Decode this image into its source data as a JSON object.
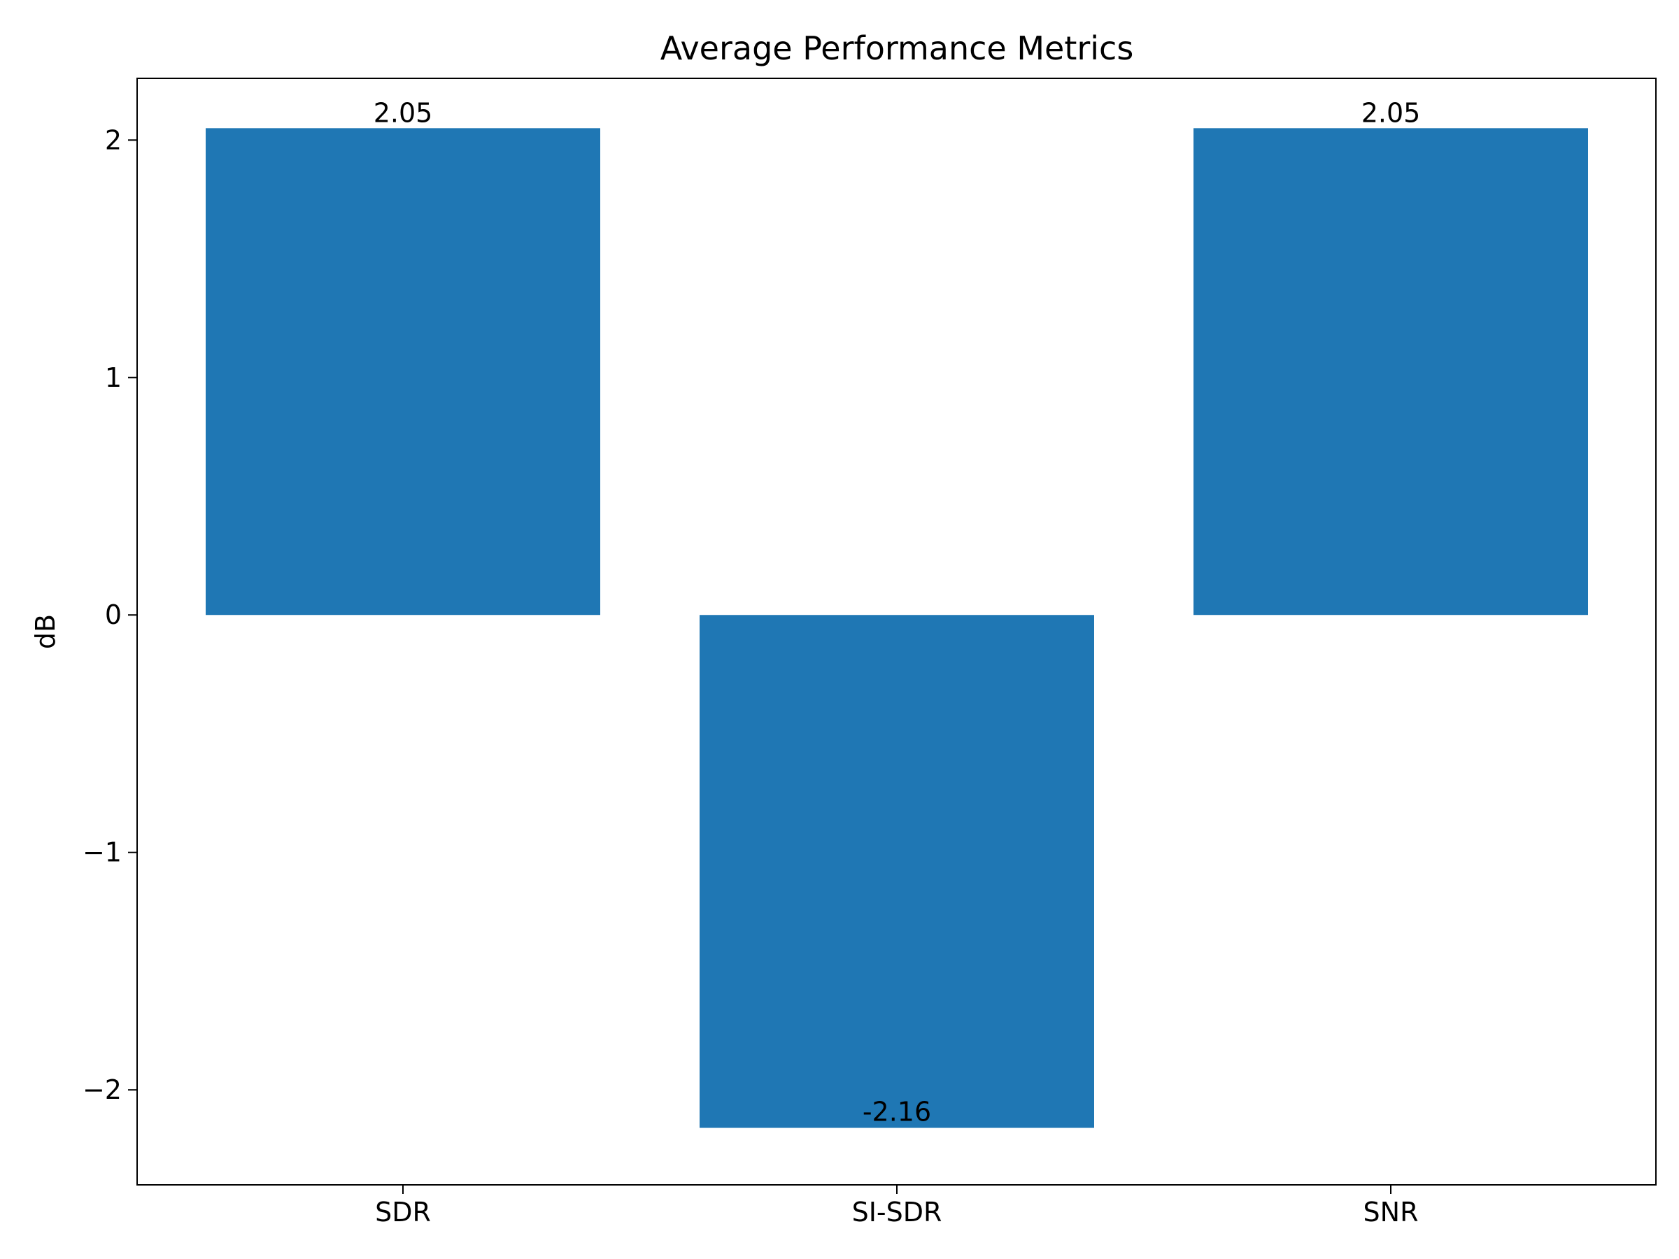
{
  "chart_data": {
    "type": "bar",
    "title": "Average Performance Metrics",
    "xlabel": "",
    "ylabel": "dB",
    "categories": [
      "SDR",
      "SI-SDR",
      "SNR"
    ],
    "values": [
      2.05,
      -2.16,
      2.05
    ],
    "data_labels": [
      "2.05",
      "-2.16",
      "2.05"
    ],
    "ylim": [
      -2.4,
      2.26
    ],
    "yticks": [
      2,
      1,
      0,
      -1,
      -2
    ],
    "ytick_labels": [
      "2",
      "1",
      "0",
      "−1",
      "−2"
    ],
    "grid": false,
    "legend": "none",
    "colors": {
      "bar": "#1f77b4",
      "axes": "#000000",
      "background": "#ffffff"
    }
  }
}
